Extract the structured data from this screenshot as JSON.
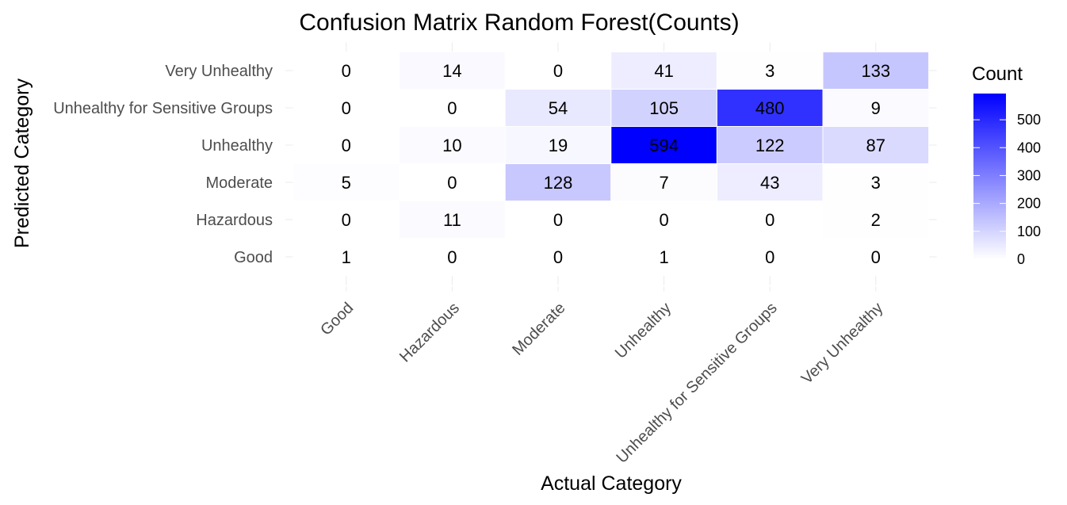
{
  "chart_data": {
    "type": "heatmap",
    "title": "Confusion Matrix Random Forest(Counts)",
    "xlabel": "Actual Category",
    "ylabel": "Predicted Category",
    "x_categories": [
      "Good",
      "Hazardous",
      "Moderate",
      "Unhealthy",
      "Unhealthy for Sensitive Groups",
      "Very Unhealthy"
    ],
    "y_categories": [
      "Good",
      "Hazardous",
      "Moderate",
      "Unhealthy",
      "Unhealthy for Sensitive Groups",
      "Very Unhealthy"
    ],
    "values": [
      [
        1,
        0,
        0,
        1,
        0,
        0
      ],
      [
        0,
        11,
        0,
        0,
        0,
        2
      ],
      [
        5,
        0,
        128,
        7,
        43,
        3
      ],
      [
        0,
        10,
        19,
        594,
        122,
        87
      ],
      [
        0,
        0,
        54,
        105,
        480,
        9
      ],
      [
        0,
        14,
        0,
        41,
        3,
        133
      ]
    ],
    "legend": {
      "title": "Count",
      "ticks": [
        0,
        100,
        200,
        300,
        400,
        500
      ],
      "min": 0,
      "max": 594,
      "low_color": "#ffffff",
      "high_color": "#0000ff"
    }
  }
}
